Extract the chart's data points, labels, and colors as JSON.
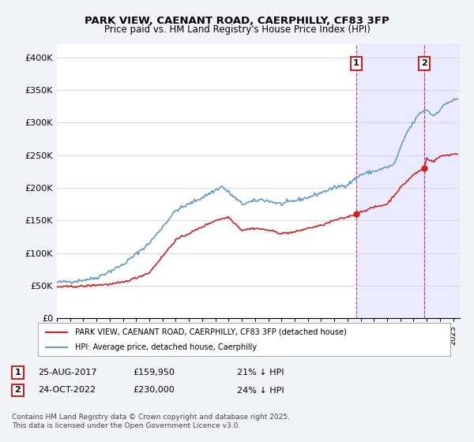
{
  "title1": "PARK VIEW, CAENANT ROAD, CAERPHILLY, CF83 3FP",
  "title2": "Price paid vs. HM Land Registry's House Price Index (HPI)",
  "ylabel_ticks": [
    "£0",
    "£50K",
    "£100K",
    "£150K",
    "£200K",
    "£250K",
    "£300K",
    "£350K",
    "£400K"
  ],
  "ytick_values": [
    0,
    50000,
    100000,
    150000,
    200000,
    250000,
    300000,
    350000,
    400000
  ],
  "ylim": [
    0,
    420000
  ],
  "xlim_start": 1995.0,
  "xlim_end": 2025.5,
  "hpi_color": "#6699cc",
  "price_color": "#cc2222",
  "marker1_x": 2017.65,
  "marker1_y": 159950,
  "marker2_x": 2022.8,
  "marker2_y": 230000,
  "marker1_label": "1",
  "marker2_label": "2",
  "legend_line1": "PARK VIEW, CAENANT ROAD, CAERPHILLY, CF83 3FP (detached house)",
  "legend_line2": "HPI: Average price, detached house, Caerphilly",
  "table_row1": [
    "1",
    "25-AUG-2017",
    "£159,950",
    "21% ↓ HPI"
  ],
  "table_row2": [
    "2",
    "24-OCT-2022",
    "£230,000",
    "24% ↓ HPI"
  ],
  "footnote": "Contains HM Land Registry data © Crown copyright and database right 2025.\nThis data is licensed under the Open Government Licence v3.0.",
  "bg_color": "#f0f4f8",
  "plot_bg": "#ffffff"
}
